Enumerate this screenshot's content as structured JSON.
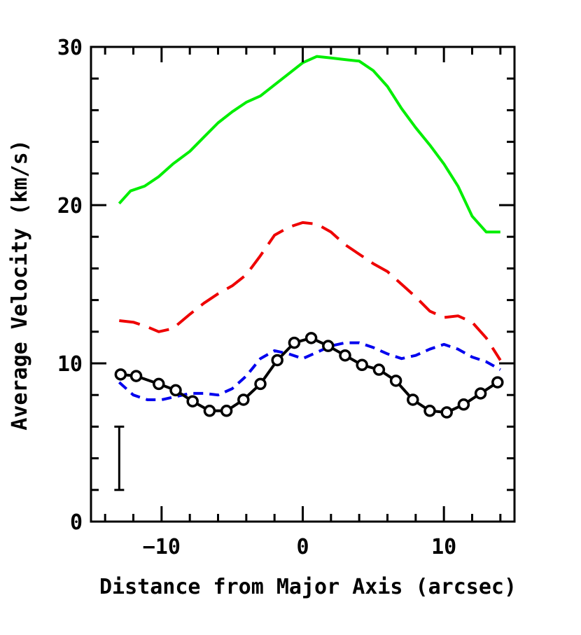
{
  "chart_data": {
    "type": "line",
    "title": "",
    "xlabel": "Distance from Major Axis (arcsec)",
    "ylabel": "Average Velocity (km/s)",
    "xlim": [
      -15,
      15
    ],
    "ylim": [
      0,
      30
    ],
    "x_ticks": [
      -10,
      0,
      10
    ],
    "x_tick_labels": [
      "−10",
      "0",
      "10"
    ],
    "y_ticks": [
      0,
      10,
      20,
      30
    ],
    "y_tick_labels": [
      "0",
      "10",
      "20",
      "30"
    ],
    "grid": false,
    "series": [
      {
        "color": "#00ee00",
        "style": "solid",
        "x": [
          -13,
          -12.2,
          -11.2,
          -10.2,
          -9.2,
          -8,
          -7,
          -6,
          -5,
          -4,
          -3,
          -2,
          -1,
          0,
          1,
          2,
          3,
          4,
          5,
          6,
          7,
          8,
          9,
          10,
          11,
          12,
          13,
          14
        ],
        "y": [
          20.1,
          20.9,
          21.2,
          21.8,
          22.6,
          23.4,
          24.3,
          25.2,
          25.9,
          26.5,
          26.9,
          27.6,
          28.3,
          29.0,
          29.4,
          29.3,
          29.2,
          29.1,
          28.5,
          27.5,
          26.1,
          24.9,
          23.8,
          22.6,
          21.2,
          19.3,
          18.3,
          18.3
        ]
      },
      {
        "color": "#ee0000",
        "style": "long-dash",
        "x": [
          -13,
          -12,
          -11,
          -10.2,
          -9.2,
          -8,
          -7,
          -6,
          -5,
          -4,
          -3,
          -2,
          -1,
          0,
          1,
          2,
          3,
          4,
          5,
          6,
          7,
          8,
          9,
          10,
          11,
          12,
          13,
          14
        ],
        "y": [
          12.7,
          12.6,
          12.3,
          12.0,
          12.2,
          13.1,
          13.8,
          14.4,
          14.9,
          15.6,
          16.8,
          18.1,
          18.6,
          18.9,
          18.8,
          18.3,
          17.5,
          16.9,
          16.3,
          15.8,
          15.0,
          14.2,
          13.3,
          12.9,
          13.0,
          12.6,
          11.6,
          10.2
        ]
      },
      {
        "color": "#0000ee",
        "style": "short-dash",
        "x": [
          -13,
          -12,
          -11,
          -10,
          -9,
          -8,
          -7,
          -6,
          -5,
          -4,
          -3,
          -2,
          -1,
          0,
          1,
          2,
          3,
          4,
          5,
          6,
          7,
          8,
          9,
          10,
          11,
          12,
          13,
          14
        ],
        "y": [
          8.8,
          8.0,
          7.7,
          7.7,
          7.9,
          8.1,
          8.1,
          8.0,
          8.4,
          9.2,
          10.3,
          10.8,
          10.6,
          10.3,
          10.7,
          11.1,
          11.3,
          11.3,
          11.0,
          10.6,
          10.3,
          10.5,
          10.9,
          11.2,
          10.9,
          10.4,
          10.1,
          9.6
        ]
      },
      {
        "color": "#000000",
        "style": "solid",
        "markers": "open-circle",
        "x": [
          -12.9,
          -11.8,
          -10.2,
          -9.0,
          -7.8,
          -6.6,
          -5.4,
          -4.2,
          -3.0,
          -1.8,
          -0.6,
          0.6,
          1.8,
          3.0,
          4.2,
          5.4,
          6.6,
          7.8,
          9.0,
          10.2,
          11.4,
          12.6,
          13.8
        ],
        "y": [
          9.3,
          9.2,
          8.7,
          8.3,
          7.6,
          7.0,
          7.0,
          7.7,
          8.7,
          10.2,
          11.3,
          11.6,
          11.1,
          10.5,
          9.9,
          9.6,
          8.9,
          7.7,
          7.0,
          6.9,
          7.4,
          8.1,
          8.8
        ]
      }
    ],
    "error_bar": {
      "x": -13,
      "y_low": 2.0,
      "y_high": 6.0
    }
  }
}
